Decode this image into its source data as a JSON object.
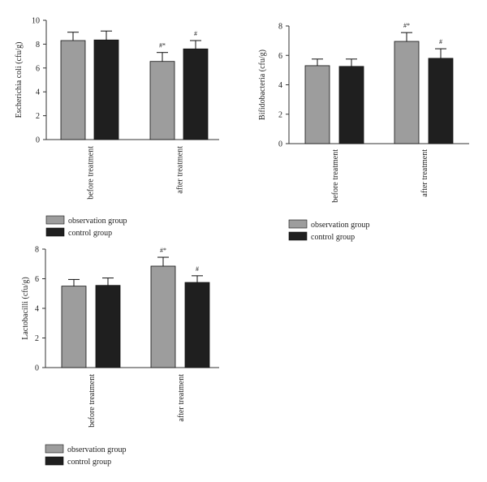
{
  "colors": {
    "observation": "#9d9d9d",
    "control": "#1f1f1f",
    "axis": "#333333"
  },
  "chart_data": [
    {
      "type": "bar",
      "ylabel": "Escherichia coli (cfu/g)",
      "categories": [
        "before treatment",
        "after treatment"
      ],
      "ylim": [
        0,
        10
      ],
      "yticks": [
        0,
        2,
        4,
        6,
        8,
        10
      ],
      "series": [
        {
          "name": "observation group",
          "values": [
            8.3,
            6.55
          ],
          "errors": [
            0.7,
            0.75
          ],
          "annotations": [
            "",
            "#*"
          ]
        },
        {
          "name": "control group",
          "values": [
            8.35,
            7.6
          ],
          "errors": [
            0.75,
            0.7
          ],
          "annotations": [
            "",
            "#"
          ]
        }
      ],
      "legend": "bottom-left"
    },
    {
      "type": "bar",
      "ylabel": "Bifidobacteria (cfu/g)",
      "categories": [
        "before treatment",
        "after treatment"
      ],
      "ylim": [
        0,
        8
      ],
      "yticks": [
        0,
        2,
        4,
        6,
        8
      ],
      "series": [
        {
          "name": "observation group",
          "values": [
            5.3,
            6.95
          ],
          "errors": [
            0.45,
            0.6
          ],
          "annotations": [
            "",
            "#*"
          ]
        },
        {
          "name": "control group",
          "values": [
            5.25,
            5.8
          ],
          "errors": [
            0.5,
            0.65
          ],
          "annotations": [
            "",
            "#"
          ]
        }
      ],
      "legend": "bottom-left"
    },
    {
      "type": "bar",
      "ylabel": "Lactobacilli (cfu/g)",
      "categories": [
        "before treatment",
        "after treatment"
      ],
      "ylim": [
        0,
        8
      ],
      "yticks": [
        0,
        2,
        4,
        6,
        8
      ],
      "series": [
        {
          "name": "observation group",
          "values": [
            5.5,
            6.85
          ],
          "errors": [
            0.45,
            0.6
          ],
          "annotations": [
            "",
            "#*"
          ]
        },
        {
          "name": "control group",
          "values": [
            5.55,
            5.75
          ],
          "errors": [
            0.5,
            0.45
          ],
          "annotations": [
            "",
            "#"
          ]
        }
      ],
      "legend": "bottom-left"
    }
  ]
}
